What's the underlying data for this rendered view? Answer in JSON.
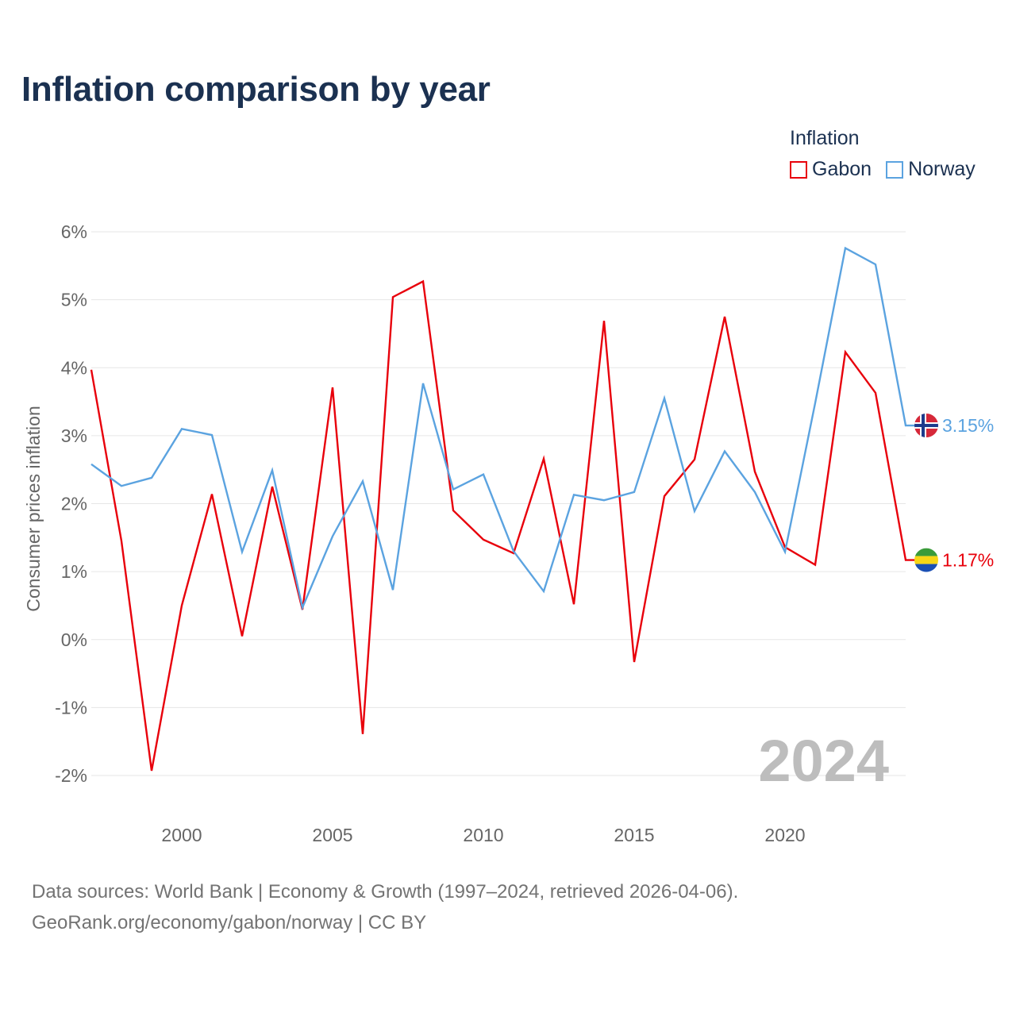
{
  "title": "Inflation comparison by year",
  "legend": {
    "title": "Inflation",
    "items": [
      {
        "label": "Gabon",
        "color": "#e8000b"
      },
      {
        "label": "Norway",
        "color": "#5ba3e0"
      }
    ]
  },
  "chart_data": {
    "type": "line",
    "title": "Inflation comparison by year",
    "xlabel": "",
    "ylabel": "Consumer prices inflation",
    "x": [
      1997,
      1998,
      1999,
      2000,
      2001,
      2002,
      2003,
      2004,
      2005,
      2006,
      2007,
      2008,
      2009,
      2010,
      2011,
      2012,
      2013,
      2014,
      2015,
      2016,
      2017,
      2018,
      2019,
      2020,
      2021,
      2022,
      2023,
      2024
    ],
    "xlim": [
      1997,
      2024
    ],
    "ylim": [
      -2,
      6
    ],
    "yticks": [
      -2,
      -1,
      0,
      1,
      2,
      3,
      4,
      5,
      6
    ],
    "ytick_labels": [
      "-2%",
      "-1%",
      "0%",
      "1%",
      "2%",
      "3%",
      "4%",
      "5%",
      "6%"
    ],
    "xticks": [
      2000,
      2005,
      2010,
      2015,
      2020
    ],
    "xtick_labels": [
      "2000",
      "2005",
      "2010",
      "2015",
      "2020"
    ],
    "grid": true,
    "legend_position": "top-right",
    "series": [
      {
        "name": "Gabon",
        "color": "#e8000b",
        "values": [
          3.97,
          1.45,
          -1.93,
          0.5,
          2.14,
          0.05,
          2.25,
          0.44,
          3.71,
          -1.39,
          5.04,
          5.27,
          1.9,
          1.47,
          1.27,
          2.66,
          0.52,
          4.69,
          -0.33,
          2.11,
          2.65,
          4.75,
          2.47,
          1.36,
          1.1,
          4.23,
          3.63,
          1.17
        ],
        "end_label": "1.17%",
        "flag": "gabon-flag"
      },
      {
        "name": "Norway",
        "color": "#5ba3e0",
        "values": [
          2.58,
          2.26,
          2.38,
          3.1,
          3.01,
          1.29,
          2.49,
          0.47,
          1.52,
          2.33,
          0.73,
          3.77,
          2.21,
          2.43,
          1.3,
          0.71,
          2.13,
          2.05,
          2.17,
          3.55,
          1.89,
          2.77,
          2.17,
          1.29,
          3.48,
          5.76,
          5.52,
          3.15
        ],
        "end_label": "3.15%",
        "flag": "norway-flag"
      }
    ],
    "annotations": [
      {
        "text": "2024",
        "position": "bottom-right"
      }
    ]
  },
  "footer": {
    "line1": "Data sources: World Bank | Economy & Growth (1997–2024, retrieved 2026-04-06).",
    "line2": "GeoRank.org/economy/gabon/norway | CC BY"
  }
}
